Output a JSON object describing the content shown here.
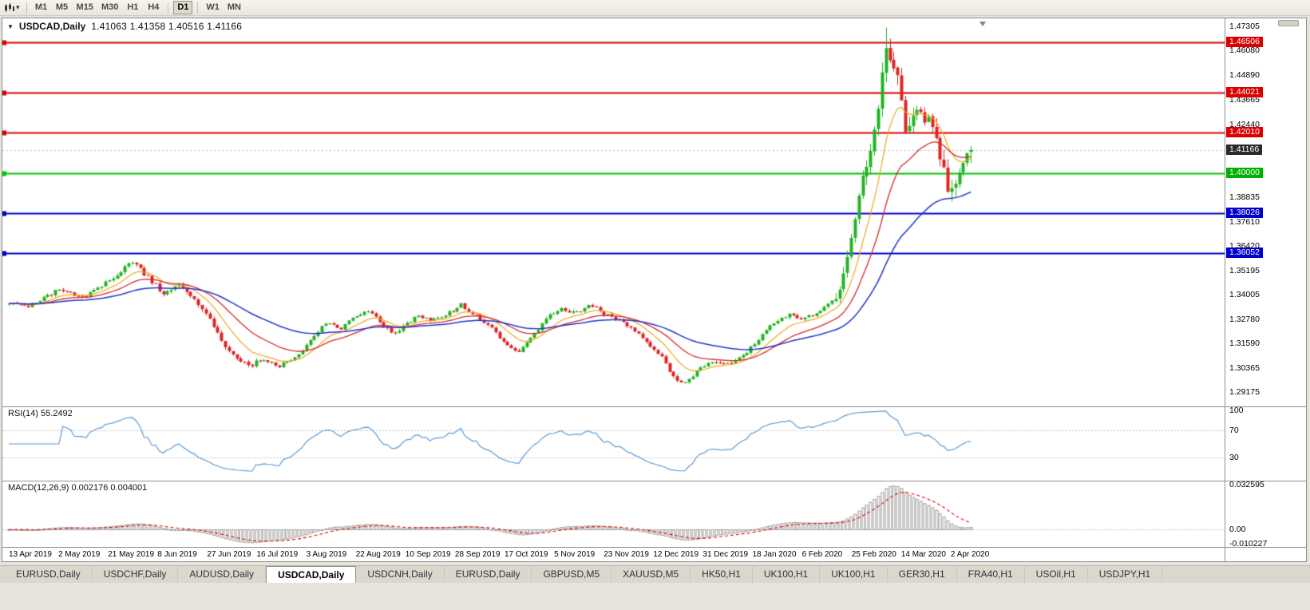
{
  "toolbar": {
    "timeframes": [
      "M1",
      "M5",
      "M15",
      "M30",
      "H1",
      "H4",
      "D1",
      "W1",
      "MN"
    ],
    "selected_timeframe": "D1",
    "separators_after": [
      "H4",
      "D1"
    ]
  },
  "chart": {
    "header": {
      "symbol": "USDCAD,Daily",
      "ohlc": "1.41063 1.41358 1.40516 1.41166"
    },
    "y_axis_ticks": [
      "1.47305",
      "1.46080",
      "1.44890",
      "1.43665",
      "1.42440",
      "1.38835",
      "1.37610",
      "1.36420",
      "1.35195",
      "1.34005",
      "1.32780",
      "1.31590",
      "1.30365",
      "1.29175"
    ],
    "price_tags": [
      {
        "text": "1.46506",
        "color": "#dc0000",
        "type": "resistance-1"
      },
      {
        "text": "1.44021",
        "color": "#dc0000",
        "type": "resistance-2"
      },
      {
        "text": "1.42010",
        "color": "#dc0000",
        "type": "resistance-3"
      },
      {
        "text": "1.41166",
        "color": "#2a2a2a",
        "type": "current-price"
      },
      {
        "text": "1.40000",
        "color": "#00b000",
        "type": "key-level"
      },
      {
        "text": "1.38026",
        "color": "#0000cd",
        "type": "support-1"
      },
      {
        "text": "1.36052",
        "color": "#0000cd",
        "type": "support-2"
      }
    ],
    "x_axis_labels": [
      "13 Apr 2019",
      "2 May 2019",
      "21 May 2019",
      "8 Jun 2019",
      "27 Jun 2019",
      "16 Jul 2019",
      "3 Aug 2019",
      "22 Aug 2019",
      "10 Sep 2019",
      "28 Sep 2019",
      "17 Oct 2019",
      "5 Nov 2019",
      "23 Nov 2019",
      "12 Dec 2019",
      "31 Dec 2019",
      "18 Jan 2020",
      "6 Feb 2020",
      "25 Feb 2020",
      "14 Mar 2020",
      "2 Apr 2020"
    ]
  },
  "rsi_panel": {
    "label": "RSI(14) 55.2492",
    "period": 14,
    "value": 55.2492,
    "scale_labels": [
      "100",
      "70",
      "30"
    ],
    "levels": [
      70,
      30
    ],
    "line_color": "#5b9bd5"
  },
  "macd_panel": {
    "label": "MACD(12,26,9) 0.002176 0.004001",
    "fast": 12,
    "slow": 26,
    "signal_period": 9,
    "main_value": 0.002176,
    "signal_value": 0.004001,
    "scale_labels": [
      "0.032595",
      "0.00",
      "-0.010227"
    ],
    "scale_max": 0.032595,
    "scale_min": -0.010227,
    "histogram_color": "#9a9a9a",
    "signal_color": "#e00000"
  },
  "tabs": {
    "items": [
      "EURUSD,Daily",
      "USDCHF,Daily",
      "AUDUSD,Daily",
      "USDCAD,Daily",
      "USDCNH,Daily",
      "EURUSD,Daily",
      "GBPUSD,M5",
      "XAUUSD,M5",
      "HK50,H1",
      "UK100,H1",
      "UK100,H1",
      "GER30,H1",
      "FRA40,H1",
      "USOil,H1",
      "USDJPY,H1"
    ],
    "active_index": 3
  },
  "chart_data": {
    "type": "candlestick",
    "symbol": "USDCAD",
    "timeframe": "Daily",
    "bars": 250,
    "visible_price_range": [
      1.2846,
      1.476
    ],
    "current_price": 1.41166,
    "last_ohlc": {
      "open": 1.41063,
      "high": 1.41358,
      "low": 1.40516,
      "close": 1.41166
    },
    "horizontal_lines": [
      {
        "price": 1.46506,
        "color": "#dc0000"
      },
      {
        "price": 1.44021,
        "color": "#dc0000"
      },
      {
        "price": 1.4201,
        "color": "#dc0000"
      },
      {
        "price": 1.4,
        "color": "#00c400"
      },
      {
        "price": 1.38026,
        "color": "#0000cd"
      },
      {
        "price": 1.36052,
        "color": "#0000cd"
      }
    ],
    "moving_averages": [
      {
        "period": 10,
        "color": "#eda81f"
      },
      {
        "period": 22,
        "color": "#d42a2a"
      },
      {
        "period": 50,
        "color": "#2233cc"
      }
    ],
    "up_color": "#21b421",
    "down_color": "#df2423",
    "close_waypoints": [
      [
        0.0,
        1.3355
      ],
      [
        0.02,
        1.334
      ],
      [
        0.05,
        1.342
      ],
      [
        0.08,
        1.339
      ],
      [
        0.1,
        1.346
      ],
      [
        0.12,
        1.353
      ],
      [
        0.13,
        1.356
      ],
      [
        0.145,
        1.348
      ],
      [
        0.16,
        1.341
      ],
      [
        0.175,
        1.345
      ],
      [
        0.19,
        1.338
      ],
      [
        0.205,
        1.331
      ],
      [
        0.22,
        1.318
      ],
      [
        0.235,
        1.309
      ],
      [
        0.25,
        1.305
      ],
      [
        0.265,
        1.3075
      ],
      [
        0.28,
        1.3045
      ],
      [
        0.3,
        1.309
      ],
      [
        0.315,
        1.318
      ],
      [
        0.33,
        1.3265
      ],
      [
        0.345,
        1.3235
      ],
      [
        0.36,
        1.329
      ],
      [
        0.375,
        1.332
      ],
      [
        0.385,
        1.327
      ],
      [
        0.4,
        1.3195
      ],
      [
        0.412,
        1.3255
      ],
      [
        0.425,
        1.329
      ],
      [
        0.44,
        1.327
      ],
      [
        0.455,
        1.33
      ],
      [
        0.47,
        1.335
      ],
      [
        0.482,
        1.331
      ],
      [
        0.5,
        1.324
      ],
      [
        0.515,
        1.3165
      ],
      [
        0.53,
        1.3115
      ],
      [
        0.545,
        1.32
      ],
      [
        0.56,
        1.329
      ],
      [
        0.575,
        1.333
      ],
      [
        0.59,
        1.331
      ],
      [
        0.605,
        1.335
      ],
      [
        0.62,
        1.33
      ],
      [
        0.635,
        1.327
      ],
      [
        0.65,
        1.322
      ],
      [
        0.665,
        1.316
      ],
      [
        0.68,
        1.308
      ],
      [
        0.692,
        1.298
      ],
      [
        0.7,
        1.2955
      ],
      [
        0.712,
        1.3005
      ],
      [
        0.724,
        1.305
      ],
      [
        0.737,
        1.307
      ],
      [
        0.75,
        1.3062
      ],
      [
        0.765,
        1.311
      ],
      [
        0.78,
        1.318
      ],
      [
        0.795,
        1.326
      ],
      [
        0.81,
        1.33
      ],
      [
        0.825,
        1.3285
      ],
      [
        0.84,
        1.331
      ],
      [
        0.852,
        1.3355
      ],
      [
        0.862,
        1.342
      ],
      [
        0.872,
        1.362
      ],
      [
        0.88,
        1.381
      ],
      [
        0.888,
        1.396
      ],
      [
        0.896,
        1.409
      ],
      [
        0.902,
        1.428
      ],
      [
        0.908,
        1.451
      ],
      [
        0.913,
        1.463
      ],
      [
        0.918,
        1.447
      ],
      [
        0.923,
        1.456
      ],
      [
        0.928,
        1.433
      ],
      [
        0.933,
        1.418
      ],
      [
        0.938,
        1.427
      ],
      [
        0.943,
        1.435
      ],
      [
        0.948,
        1.429
      ],
      [
        0.953,
        1.421
      ],
      [
        0.958,
        1.428
      ],
      [
        0.963,
        1.416
      ],
      [
        0.968,
        1.406
      ],
      [
        0.973,
        1.399
      ],
      [
        0.978,
        1.393
      ],
      [
        0.983,
        1.389
      ],
      [
        0.988,
        1.3995
      ],
      [
        0.993,
        1.4075
      ],
      [
        1.0,
        1.41166
      ]
    ]
  }
}
